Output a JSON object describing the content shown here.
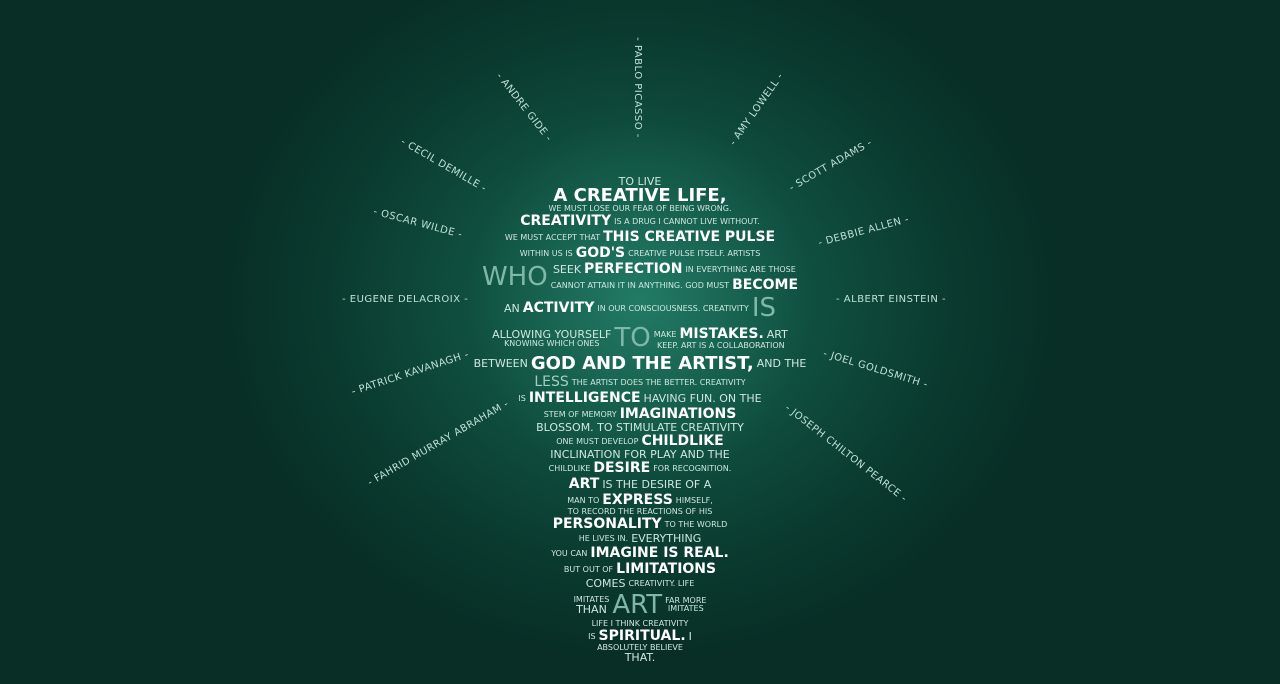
{
  "authors": [
    "- Pablo Picasso -",
    "- Andre Gide -",
    "- Amy Lowell -",
    "- Cecil Demille -",
    "- Scott Adams -",
    "- Oscar Wilde -",
    "- Debbie Allen -",
    "- Eugene Delacroix -",
    "- Albert Einstein -",
    "- Patrick Kavanagh -",
    "- Joel Goldsmith -",
    "- Fahrid Murray Abraham -",
    "- Joseph Chilton Pearce -"
  ],
  "quote_lines": [
    "to live",
    "A creative life,",
    "we must lose our fear of being wrong.",
    "Creativity",
    "is a drug I cannot live without.",
    "We must accept that",
    "this creative pulse",
    "within us is",
    "God's",
    "creative pulse itself. Artists",
    "Who",
    "seek",
    "perfection",
    "in everything are those",
    "cannot attain it in anything. God must",
    "become",
    "an",
    "activity",
    "in our consciousness. Creativity",
    "is",
    "allowing yourself",
    "to",
    "make",
    "mistakes.",
    "Art",
    "knowing which ones",
    "keep. Art is a collaboration",
    "between",
    "God and the artist,",
    "and the",
    "less",
    "the artist does the better. Creativity",
    "is",
    "intelligence",
    "having fun. On the",
    "stem of memory",
    "imaginations",
    "blossom. To stimulate creativity",
    "one must develop",
    "childlike",
    "inclination for play and the",
    "childlike",
    "desire",
    "for recognition.",
    "Art",
    "is the desire of a",
    "man to",
    "express",
    "himself,",
    "to record the reactions of his",
    "personality",
    "to the world",
    "he lives in.",
    "Everything",
    "you can",
    "imagine is real.",
    "But out of",
    "limitations",
    "comes",
    "creativity. Life",
    "imitates",
    "far more",
    "than",
    "Art",
    "imitates",
    "life I think creativity",
    "is",
    "spiritual.",
    "I",
    "absolutely believe",
    "that."
  ],
  "colors": {
    "background": "#0a3a2f",
    "glow": "#14614f",
    "text": "#cfe7df",
    "highlight": "#ffffff",
    "faint": "#7fb8a7"
  }
}
